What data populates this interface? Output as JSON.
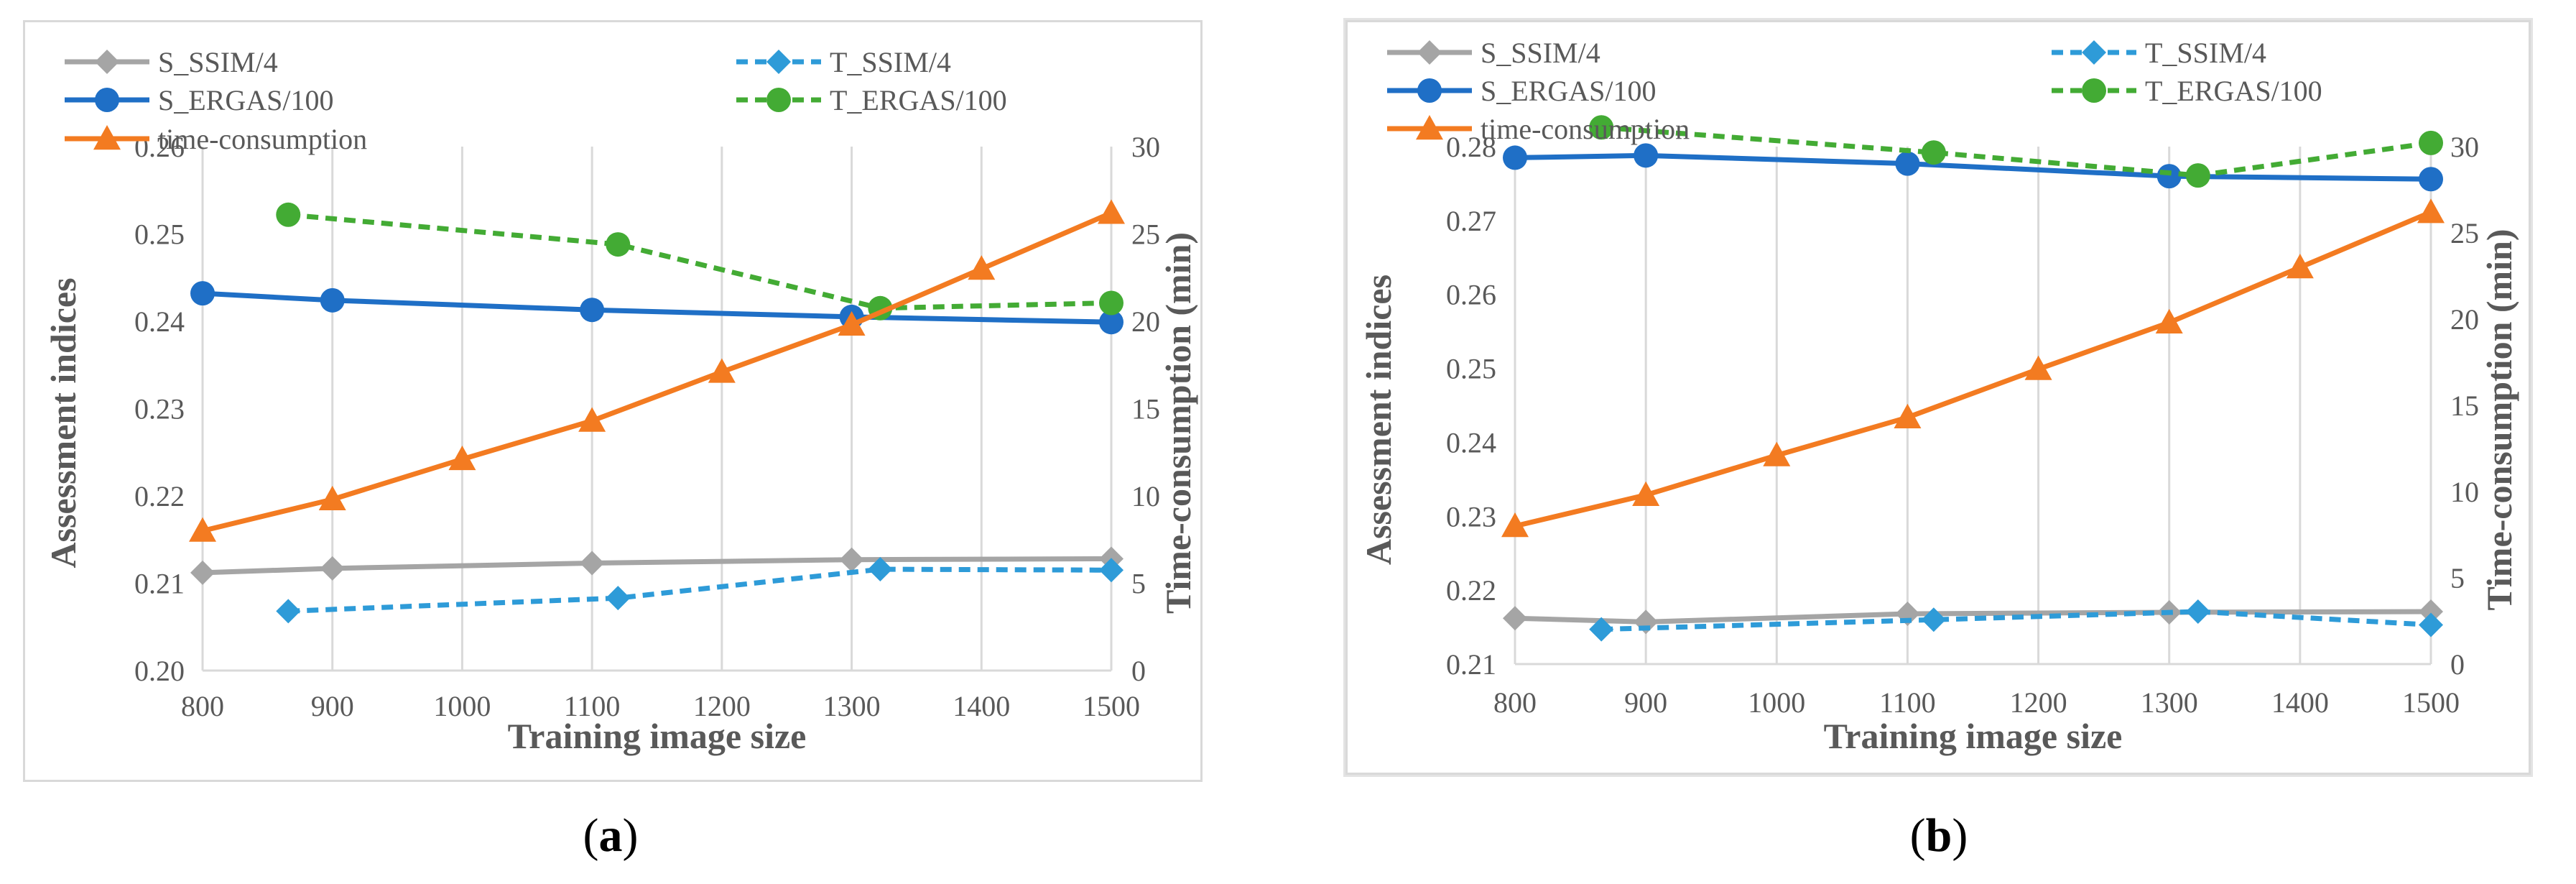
{
  "chart_data": [
    {
      "type": "line",
      "panel": "a",
      "caption": "a",
      "xlabel": "Training image size",
      "ylabel": "Assessment indices",
      "y2label": "Time-consumption (min)",
      "xlim": [
        800,
        1500
      ],
      "ylim": [
        0.2,
        0.26
      ],
      "y2lim": [
        0,
        30
      ],
      "xticks": [
        "800",
        "900",
        "1000",
        "1100",
        "1200",
        "1300",
        "1400",
        "1500"
      ],
      "yticks": [
        "0.20",
        "0.21",
        "0.22",
        "0.23",
        "0.24",
        "0.25",
        "0.26"
      ],
      "y2ticks": [
        "0",
        "5",
        "10",
        "15",
        "20",
        "25",
        "30"
      ],
      "xgrid": true,
      "legend_position": "top",
      "series": [
        {
          "name": "S_SSIM/4",
          "color": "#a5a5a5",
          "dash": "solid",
          "marker": "diamond",
          "axis": "left",
          "x": [
            800,
            900,
            1100,
            1300,
            1500
          ],
          "y": [
            0.2112,
            0.2117,
            0.2123,
            0.2127,
            0.2128
          ]
        },
        {
          "name": "T_SSIM/4",
          "color": "#2e9bd8",
          "dash": "dashed",
          "marker": "diamond",
          "axis": "left",
          "x": [
            866,
            1120,
            1322,
            1500
          ],
          "y": [
            0.2068,
            0.2083,
            0.2116,
            0.2115
          ]
        },
        {
          "name": "S_ERGAS/100",
          "color": "#1f6fc6",
          "dash": "solid",
          "marker": "circle",
          "axis": "left",
          "x": [
            800,
            900,
            1100,
            1300,
            1500
          ],
          "y": [
            0.2432,
            0.2424,
            0.2413,
            0.2405,
            0.2399
          ]
        },
        {
          "name": "T_ERGAS/100",
          "color": "#43ab34",
          "dash": "dashed",
          "marker": "circle",
          "axis": "left",
          "x": [
            866,
            1120,
            1322,
            1500
          ],
          "y": [
            0.2522,
            0.2488,
            0.2415,
            0.2421
          ]
        },
        {
          "name": "time-consumption",
          "color": "#f37b21",
          "dash": "solid",
          "marker": "triangle",
          "axis": "right",
          "x": [
            800,
            900,
            1000,
            1100,
            1200,
            1300,
            1400,
            1500
          ],
          "y": [
            8.0,
            9.8,
            12.1,
            14.3,
            17.1,
            19.8,
            23.0,
            26.2
          ]
        }
      ]
    },
    {
      "type": "line",
      "panel": "b",
      "caption": "b",
      "xlabel": "Training image size",
      "ylabel": "Assessment indices",
      "y2label": "Time-consumption (min)",
      "xlim": [
        800,
        1500
      ],
      "ylim": [
        0.21,
        0.28
      ],
      "y2lim": [
        0,
        30
      ],
      "xticks": [
        "800",
        "900",
        "1000",
        "1100",
        "1200",
        "1300",
        "1400",
        "1500"
      ],
      "yticks": [
        "0.21",
        "0.22",
        "0.23",
        "0.24",
        "0.25",
        "0.26",
        "0.27",
        "0.28"
      ],
      "y2ticks": [
        "0",
        "5",
        "10",
        "15",
        "20",
        "25",
        "30"
      ],
      "xgrid": true,
      "legend_position": "top",
      "series": [
        {
          "name": "S_SSIM/4",
          "color": "#a5a5a5",
          "dash": "solid",
          "marker": "diamond",
          "axis": "left",
          "x": [
            800,
            900,
            1100,
            1300,
            1500
          ],
          "y": [
            0.2162,
            0.2157,
            0.2168,
            0.217,
            0.2171
          ]
        },
        {
          "name": "T_SSIM/4",
          "color": "#2e9bd8",
          "dash": "dashed",
          "marker": "diamond",
          "axis": "left",
          "x": [
            866,
            1120,
            1322,
            1500
          ],
          "y": [
            0.2147,
            0.216,
            0.2171,
            0.2153
          ]
        },
        {
          "name": "S_ERGAS/100",
          "color": "#1f6fc6",
          "dash": "solid",
          "marker": "circle",
          "axis": "left",
          "x": [
            800,
            900,
            1100,
            1300,
            1500
          ],
          "y": [
            0.2785,
            0.2788,
            0.2777,
            0.276,
            0.2756
          ]
        },
        {
          "name": "T_ERGAS/100",
          "color": "#43ab34",
          "dash": "dashed",
          "marker": "circle",
          "axis": "left",
          "x": [
            866,
            1120,
            1322,
            1500
          ],
          "y": [
            0.2826,
            0.2792,
            0.2761,
            0.2805
          ]
        },
        {
          "name": "time-consumption",
          "color": "#f37b21",
          "dash": "solid",
          "marker": "triangle",
          "axis": "right",
          "x": [
            800,
            900,
            1000,
            1100,
            1200,
            1300,
            1400,
            1500
          ],
          "y": [
            8.0,
            9.8,
            12.1,
            14.3,
            17.1,
            19.8,
            23.0,
            26.2
          ]
        }
      ]
    }
  ]
}
